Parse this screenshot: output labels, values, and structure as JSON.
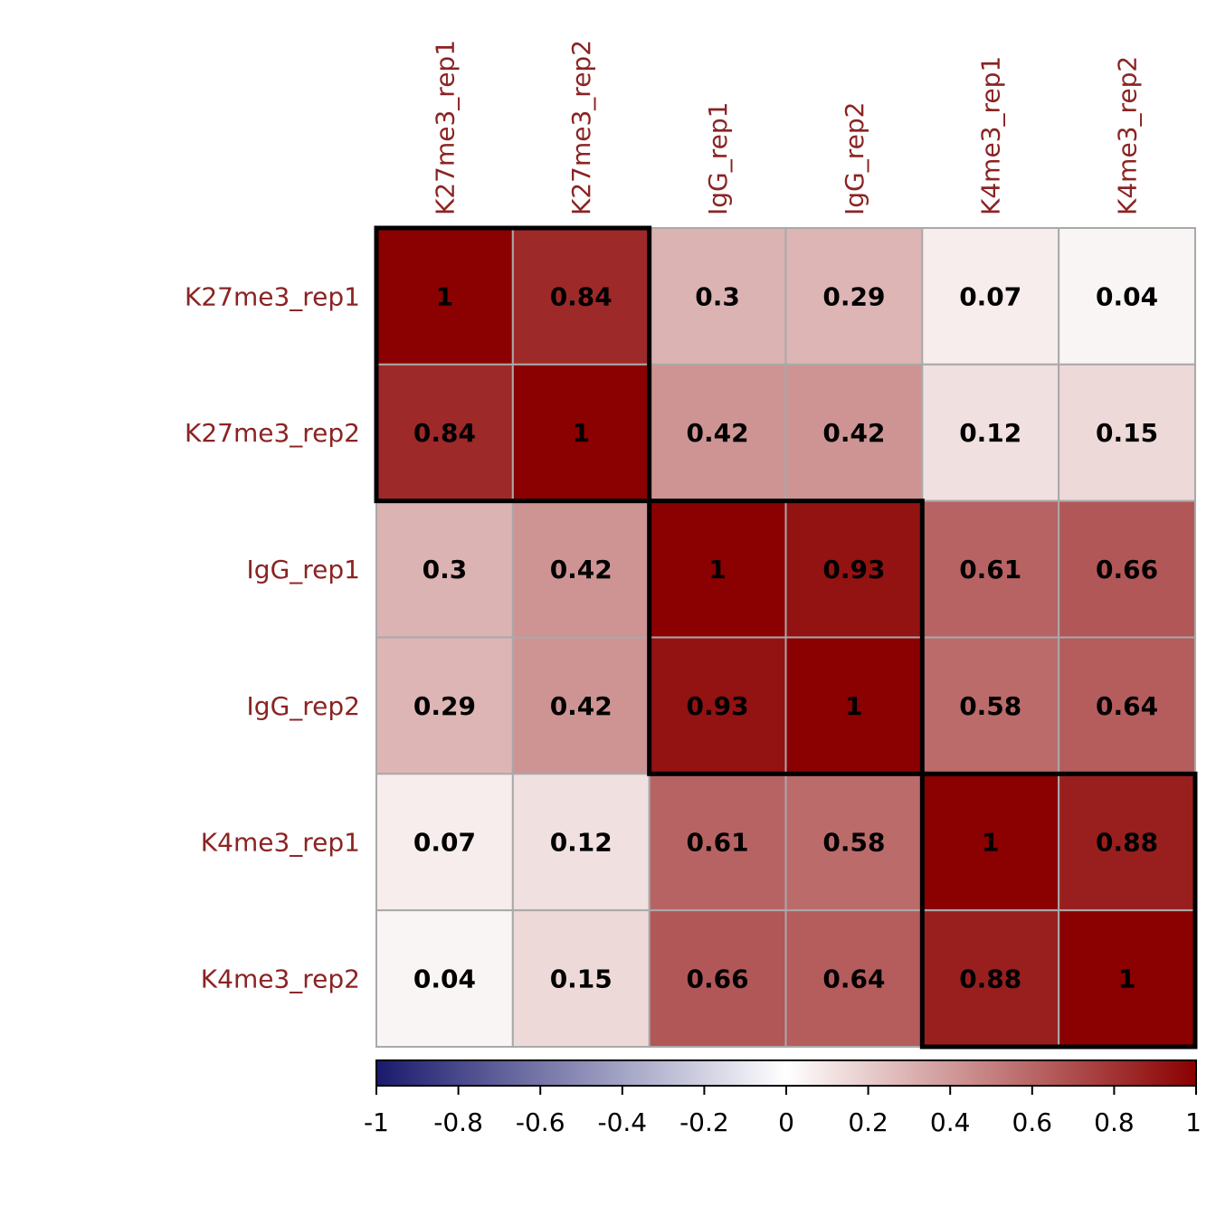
{
  "chart_data": {
    "type": "heatmap",
    "title": "",
    "variables": [
      "K27me3_rep1",
      "K27me3_rep2",
      "IgG_rep1",
      "IgG_rep2",
      "K4me3_rep1",
      "K4me3_rep2"
    ],
    "matrix": [
      [
        1,
        0.84,
        0.3,
        0.29,
        0.07,
        0.04
      ],
      [
        0.84,
        1,
        0.42,
        0.42,
        0.12,
        0.15
      ],
      [
        0.3,
        0.42,
        1,
        0.93,
        0.61,
        0.66
      ],
      [
        0.29,
        0.42,
        0.93,
        1,
        0.58,
        0.64
      ],
      [
        0.07,
        0.12,
        0.61,
        0.58,
        1,
        0.88
      ],
      [
        0.04,
        0.15,
        0.66,
        0.64,
        0.88,
        1
      ]
    ],
    "cell_labels": [
      [
        "1",
        "0.84",
        "0.3",
        "0.29",
        "0.07",
        "0.04"
      ],
      [
        "0.84",
        "1",
        "0.42",
        "0.42",
        "0.12",
        "0.15"
      ],
      [
        "0.3",
        "0.42",
        "1",
        "0.93",
        "0.61",
        "0.66"
      ],
      [
        "0.29",
        "0.42",
        "0.93",
        "1",
        "0.58",
        "0.64"
      ],
      [
        "0.07",
        "0.12",
        "0.61",
        "0.58",
        "1",
        "0.88"
      ],
      [
        "0.04",
        "0.15",
        "0.66",
        "0.64",
        "0.88",
        "1"
      ]
    ],
    "clusters": [
      {
        "start": 0,
        "end": 1
      },
      {
        "start": 2,
        "end": 3
      },
      {
        "start": 4,
        "end": 5
      }
    ],
    "colorbar": {
      "min": -1,
      "max": 1,
      "ticks": [
        "-1",
        "-0.8",
        "-0.6",
        "-0.4",
        "-0.2",
        "0",
        "0.2",
        "0.4",
        "0.6",
        "0.8",
        "1"
      ],
      "low_color": "#1A1A6E",
      "mid_color": "#FFFFFF",
      "high_color": "#8B0000"
    },
    "label_color": "#8B2323"
  }
}
